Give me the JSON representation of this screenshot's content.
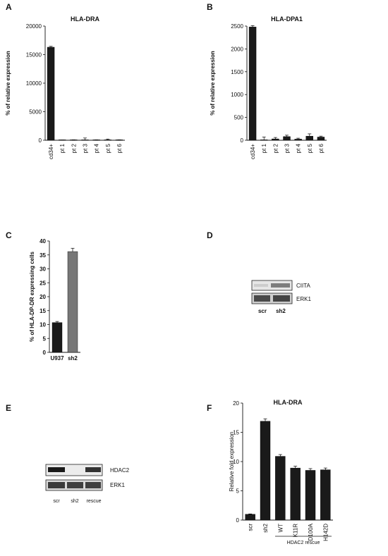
{
  "panels": {
    "A": {
      "letter": "A"
    },
    "B": {
      "letter": "B"
    },
    "C": {
      "letter": "C"
    },
    "D": {
      "letter": "D",
      "bands": [
        {
          "label": "CIITA"
        },
        {
          "label": "ERK1"
        }
      ],
      "lanes": [
        "scr",
        "sh2"
      ]
    },
    "E": {
      "letter": "E",
      "bands": [
        {
          "label": "HDAC2"
        },
        {
          "label": "ERK1"
        }
      ],
      "lanes": [
        "scr",
        "sh2",
        "rescue"
      ]
    },
    "F": {
      "letter": "F",
      "bracket_label": "HDAC2 rescue"
    }
  },
  "colors": {
    "dark_bar": "#1a1a1a",
    "grey_bar": "#777777",
    "axis": "#111111"
  },
  "chart_data": [
    {
      "panel": "A",
      "type": "bar",
      "title": "HLA-DRA",
      "xlabel": "",
      "ylabel": "% of relative expression",
      "categories": [
        "cd34+",
        "pt 1",
        "pt 2",
        "pt 3",
        "pt 4",
        "pt 5",
        "pt 6"
      ],
      "values": [
        16300,
        10,
        20,
        40,
        10,
        60,
        20
      ],
      "errors": [
        150,
        20,
        60,
        350,
        60,
        150,
        60
      ],
      "ylim": [
        0,
        20000
      ],
      "yticks": [
        0,
        5000,
        10000,
        15000,
        20000
      ],
      "rotate_labels": true,
      "grid": false
    },
    {
      "panel": "B",
      "type": "bar",
      "title": "HLA-DPA1",
      "xlabel": "",
      "ylabel": "% of relative expression",
      "categories": [
        "cd34+",
        "pt 1",
        "pt 2",
        "pt 3",
        "pt 4",
        "pt 5",
        "pt 6"
      ],
      "values": [
        2480,
        10,
        30,
        80,
        25,
        90,
        70
      ],
      "errors": [
        30,
        60,
        30,
        30,
        20,
        50,
        20
      ],
      "ylim": [
        0,
        2500
      ],
      "yticks": [
        0,
        500,
        1000,
        1500,
        2000,
        2500
      ],
      "rotate_labels": true,
      "grid": false
    },
    {
      "panel": "C",
      "type": "bar",
      "title": "",
      "xlabel": "",
      "ylabel": "% of HLA-DP-DR expressing cells",
      "categories": [
        "U937",
        "sh2"
      ],
      "values": [
        10.7,
        36.2
      ],
      "errors": [
        0.4,
        1.2
      ],
      "bar_colors": [
        "#1a1a1a",
        "#777777"
      ],
      "ylim": [
        0,
        40
      ],
      "yticks": [
        0,
        5,
        10,
        15,
        20,
        25,
        30,
        35,
        40
      ],
      "rotate_labels": false,
      "grid": false
    },
    {
      "panel": "F",
      "type": "bar",
      "title": "HLA-DRA",
      "xlabel": "",
      "ylabel": "Relative fold expression",
      "categories": [
        "scr",
        "sh2",
        "WT",
        "K11R",
        "D100A",
        "H142D"
      ],
      "values": [
        1.0,
        16.9,
        10.9,
        8.9,
        8.5,
        8.6
      ],
      "errors": [
        0.05,
        0.4,
        0.3,
        0.3,
        0.3,
        0.3
      ],
      "ylim": [
        0,
        20
      ],
      "yticks": [
        0,
        5,
        10,
        15,
        20
      ],
      "rotate_labels": true,
      "grid": false
    }
  ]
}
